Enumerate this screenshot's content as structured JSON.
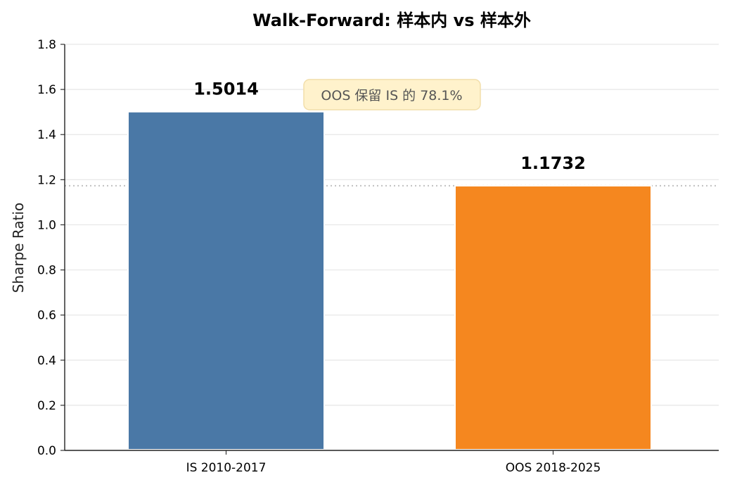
{
  "chart_data": {
    "type": "bar",
    "title": "Walk-Forward: 样本内 vs 样本外",
    "ylabel": "Sharpe Ratio",
    "xlabel": "",
    "categories": [
      "IS 2010-2017",
      "OOS 2018-2025"
    ],
    "values": [
      1.5014,
      1.1732
    ],
    "value_labels": [
      "1.5014",
      "1.1732"
    ],
    "colors": [
      "#4a78a6",
      "#f5871f"
    ],
    "ylim": [
      0,
      1.8
    ],
    "yticks": [
      "0.0",
      "0.2",
      "0.4",
      "0.6",
      "0.8",
      "1.0",
      "1.2",
      "1.4",
      "1.6",
      "1.8"
    ],
    "grid": "horizontal",
    "reference_line": {
      "value": 1.1732,
      "style": "dotted"
    },
    "annotation": {
      "text": "OOS 保留 IS 的 78.1%",
      "background": "#fff2cc"
    }
  }
}
